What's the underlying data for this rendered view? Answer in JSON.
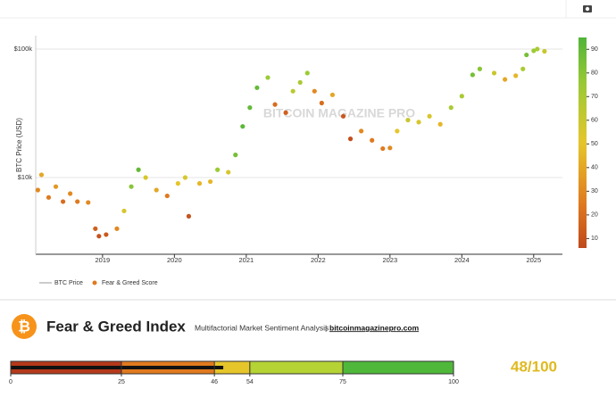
{
  "chart_data": [
    {
      "type": "scatter",
      "watermark": "BITCOIN MAGAZINE PRO",
      "y_label": "BTC Price (USD)",
      "log_y": true,
      "xlim": [
        2018.07,
        2025.4
      ],
      "xticks": [
        2019,
        2020,
        2021,
        2022,
        2023,
        2024,
        2025
      ],
      "ylim": [
        2530,
        127000
      ],
      "yticks": [
        {
          "value": 10000,
          "label": "$10k"
        },
        {
          "value": 100000,
          "label": "$100k"
        }
      ],
      "grid": true,
      "colorscale": [
        [
          0,
          "#b5391b"
        ],
        [
          25,
          "#e07a1f"
        ],
        [
          50,
          "#e6c52a"
        ],
        [
          75,
          "#9bcb35"
        ],
        [
          100,
          "#3fae3a"
        ]
      ],
      "colorbar_lim": [
        6,
        95
      ],
      "colorbar_ticks": [
        10,
        20,
        30,
        40,
        50,
        60,
        70,
        80,
        90
      ],
      "legend": [
        "BTC Price",
        "Fear & Greed Score"
      ],
      "legend_colors": [
        "#bbbbbb",
        "#e07a1f"
      ],
      "x": [
        2018.1,
        2018.15,
        2018.25,
        2018.35,
        2018.45,
        2018.55,
        2018.65,
        2018.8,
        2018.9,
        2018.95,
        2019.05,
        2019.2,
        2019.3,
        2019.4,
        2019.5,
        2019.6,
        2019.75,
        2019.9,
        2020.05,
        2020.15,
        2020.2,
        2020.35,
        2020.5,
        2020.6,
        2020.75,
        2020.85,
        2020.95,
        2021.05,
        2021.15,
        2021.3,
        2021.4,
        2021.55,
        2021.65,
        2021.75,
        2021.85,
        2021.95,
        2022.05,
        2022.2,
        2022.35,
        2022.45,
        2022.6,
        2022.75,
        2022.9,
        2023.0,
        2023.1,
        2023.25,
        2023.4,
        2023.55,
        2023.7,
        2023.85,
        2024.0,
        2024.15,
        2024.25,
        2024.45,
        2024.6,
        2024.75,
        2024.85,
        2024.9,
        2025.0,
        2025.05,
        2025.15
      ],
      "values": [
        8000,
        10500,
        7000,
        8500,
        6500,
        7500,
        6500,
        6400,
        4000,
        3500,
        3600,
        4000,
        5500,
        8500,
        11500,
        10000,
        8000,
        7200,
        9000,
        10000,
        5000,
        9000,
        9300,
        11500,
        11000,
        15000,
        25000,
        35000,
        50000,
        60000,
        37000,
        32000,
        47000,
        55000,
        65000,
        47000,
        38000,
        44000,
        30000,
        20000,
        23000,
        19500,
        16800,
        17000,
        23000,
        28000,
        27000,
        30000,
        26000,
        35000,
        43000,
        63000,
        70000,
        65000,
        58000,
        62000,
        70000,
        90000,
        97000,
        100000,
        96000
      ],
      "scores": [
        30,
        40,
        25,
        35,
        20,
        30,
        25,
        30,
        15,
        10,
        12,
        30,
        55,
        80,
        90,
        55,
        40,
        25,
        50,
        55,
        10,
        45,
        45,
        75,
        55,
        85,
        92,
        90,
        90,
        75,
        20,
        15,
        65,
        70,
        75,
        30,
        20,
        40,
        12,
        8,
        30,
        25,
        25,
        30,
        50,
        60,
        55,
        55,
        45,
        70,
        70,
        85,
        80,
        60,
        40,
        45,
        70,
        85,
        75,
        70,
        60
      ]
    },
    {
      "type": "gauge",
      "title": "Fear & Greed Index",
      "subtitle": "Multifactorial Market Sentiment Analysis",
      "separator": "|",
      "source": "bitcoinmagazinepro.com",
      "xlim": [
        0,
        100
      ],
      "xticks": [
        0,
        25,
        46,
        54,
        75,
        100
      ],
      "band_colors": [
        "#b5391b",
        "#e07a1f",
        "#e6c52a",
        "#b5d334",
        "#4fb83a"
      ],
      "value": 48,
      "value_labels": "48/100",
      "value_color": "#e0b91f"
    }
  ]
}
